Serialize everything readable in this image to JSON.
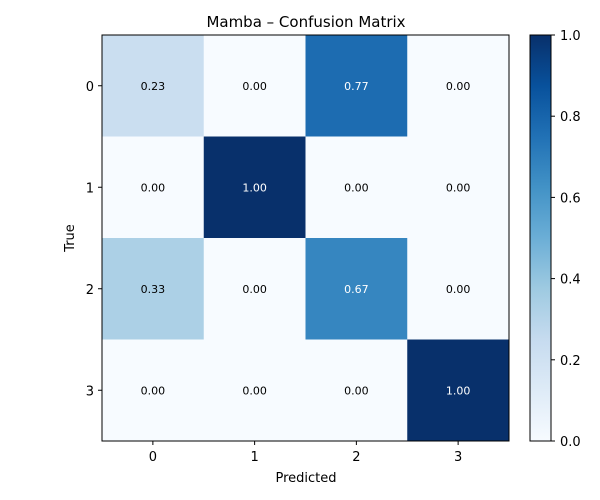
{
  "chart_data": {
    "type": "heatmap",
    "title": "Mamba – Confusion Matrix",
    "xlabel": "Predicted",
    "ylabel": "True",
    "x_categories": [
      "0",
      "1",
      "2",
      "3"
    ],
    "y_categories": [
      "0",
      "1",
      "2",
      "3"
    ],
    "values": [
      [
        0.23,
        0.0,
        0.77,
        0.0
      ],
      [
        0.0,
        1.0,
        0.0,
        0.0
      ],
      [
        0.33,
        0.0,
        0.67,
        0.0
      ],
      [
        0.0,
        0.0,
        0.0,
        1.0
      ]
    ],
    "colormap": "Blues",
    "colorbar": {
      "range": [
        0.0,
        1.0
      ],
      "ticks": [
        "0.0",
        "0.2",
        "0.4",
        "0.6",
        "0.8",
        "1.0"
      ]
    }
  }
}
